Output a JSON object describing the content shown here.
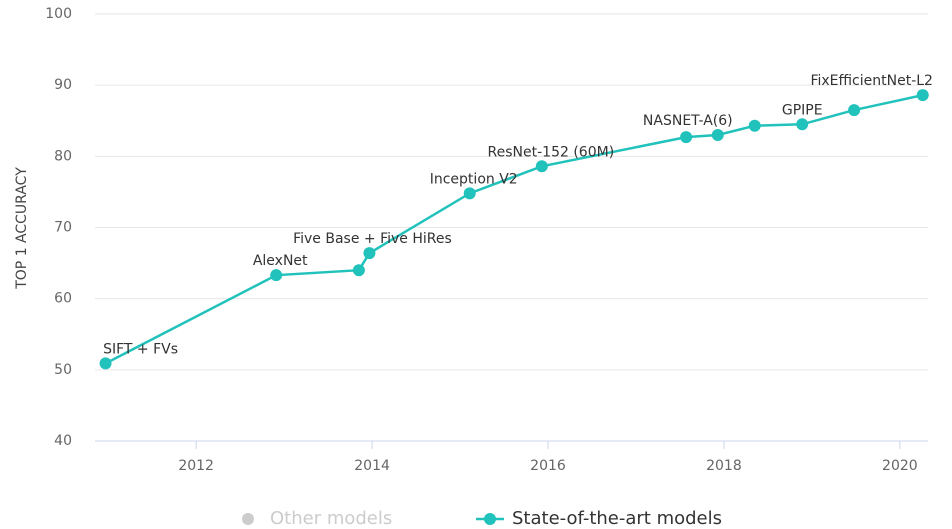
{
  "chart_data": {
    "type": "line",
    "ylabel": "TOP 1 ACCURACY",
    "xlim": [
      2010.85,
      2020.32
    ],
    "xticks": [
      2012,
      2014,
      2016,
      2018,
      2020
    ],
    "ylim": [
      40,
      100
    ],
    "yticks": [
      40,
      50,
      60,
      70,
      80,
      90,
      100
    ],
    "grid": true,
    "legend": "bottom",
    "series": [
      {
        "name": "Other models",
        "color": "#cccccc",
        "x": [],
        "values": [],
        "point_labels": []
      },
      {
        "name": "State-of-the-art models",
        "color": "#21c2bb",
        "x": [
          2010.97,
          2012.91,
          2013.85,
          2013.97,
          2015.11,
          2015.93,
          2017.57,
          2017.93,
          2018.35,
          2018.89,
          2019.48,
          2020.26
        ],
        "values": [
          50.9,
          63.3,
          64.0,
          66.4,
          74.8,
          78.6,
          82.7,
          83.0,
          84.3,
          84.5,
          86.5,
          88.6
        ],
        "point_labels": [
          "SIFT + FVs",
          "AlexNet",
          null,
          "Five Base + Five HiRes",
          "Inception V2",
          "ResNet-152 (60M)",
          null,
          "NASNET-A(6)",
          null,
          "GPIPE",
          null,
          "FixEfficientNet-L2"
        ]
      }
    ]
  }
}
